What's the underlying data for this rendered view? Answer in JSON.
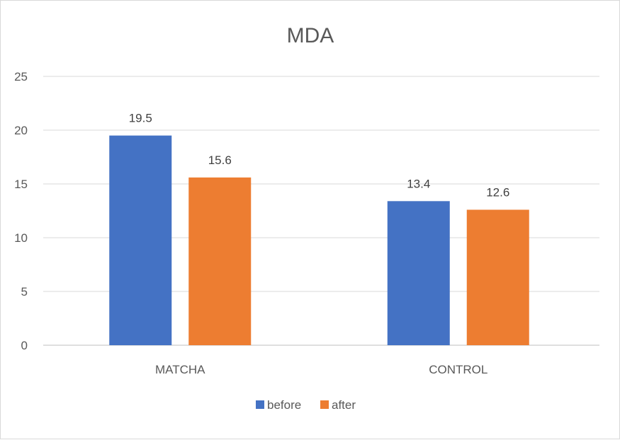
{
  "chart_data": {
    "type": "bar",
    "title": "MDA",
    "categories": [
      "MATCHA",
      "CONTROL"
    ],
    "series": [
      {
        "name": "before",
        "values": [
          19.5,
          13.4
        ],
        "color": "#4472c4"
      },
      {
        "name": "after",
        "values": [
          15.6,
          12.6
        ],
        "color": "#ed7d31"
      }
    ],
    "ylim": [
      0,
      25
    ],
    "yticks": [
      0,
      5,
      10,
      15,
      20,
      25
    ],
    "grid": true,
    "legend": "bottom",
    "data_labels": true
  }
}
